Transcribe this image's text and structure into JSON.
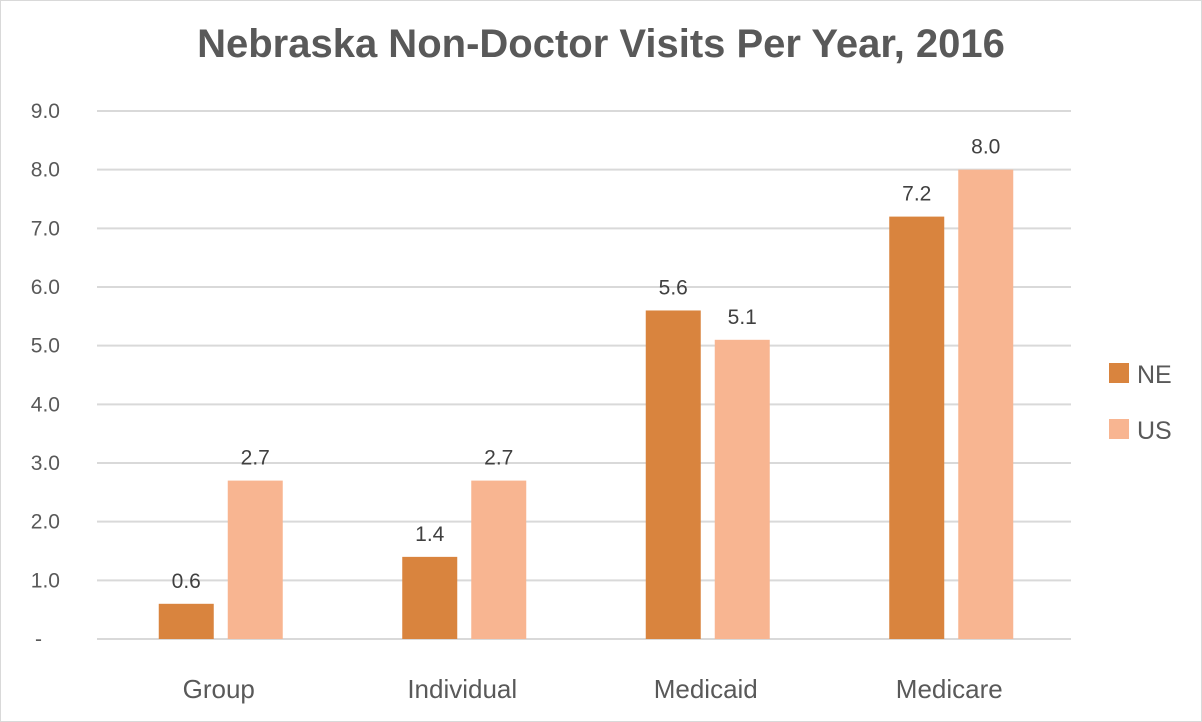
{
  "chart_data": {
    "type": "bar",
    "title": "Nebraska Non-Doctor Visits Per Year, 2016",
    "xlabel": "",
    "ylabel": "",
    "categories": [
      "Group",
      "Individual",
      "Medicaid",
      "Medicare"
    ],
    "series": [
      {
        "name": "NE",
        "color": "#D9843E",
        "values": [
          0.6,
          1.4,
          5.6,
          7.2
        ],
        "labels": [
          "0.6",
          "1.4",
          "5.6",
          "7.2"
        ]
      },
      {
        "name": "US",
        "color": "#F8B591",
        "values": [
          2.7,
          2.7,
          5.1,
          8.0
        ],
        "labels": [
          "2.7",
          "2.7",
          "5.1",
          "8.0"
        ]
      }
    ],
    "ylim": [
      0,
      9
    ],
    "yticks": [
      0,
      1,
      2,
      3,
      4,
      5,
      6,
      7,
      8,
      9
    ],
    "ytick_labels": [
      "-",
      "1.0",
      "2.0",
      "3.0",
      "4.0",
      "5.0",
      "6.0",
      "7.0",
      "8.0",
      "9.0"
    ],
    "grid": true,
    "legend_position": "right",
    "gridline_color": "#D9D9D9"
  }
}
